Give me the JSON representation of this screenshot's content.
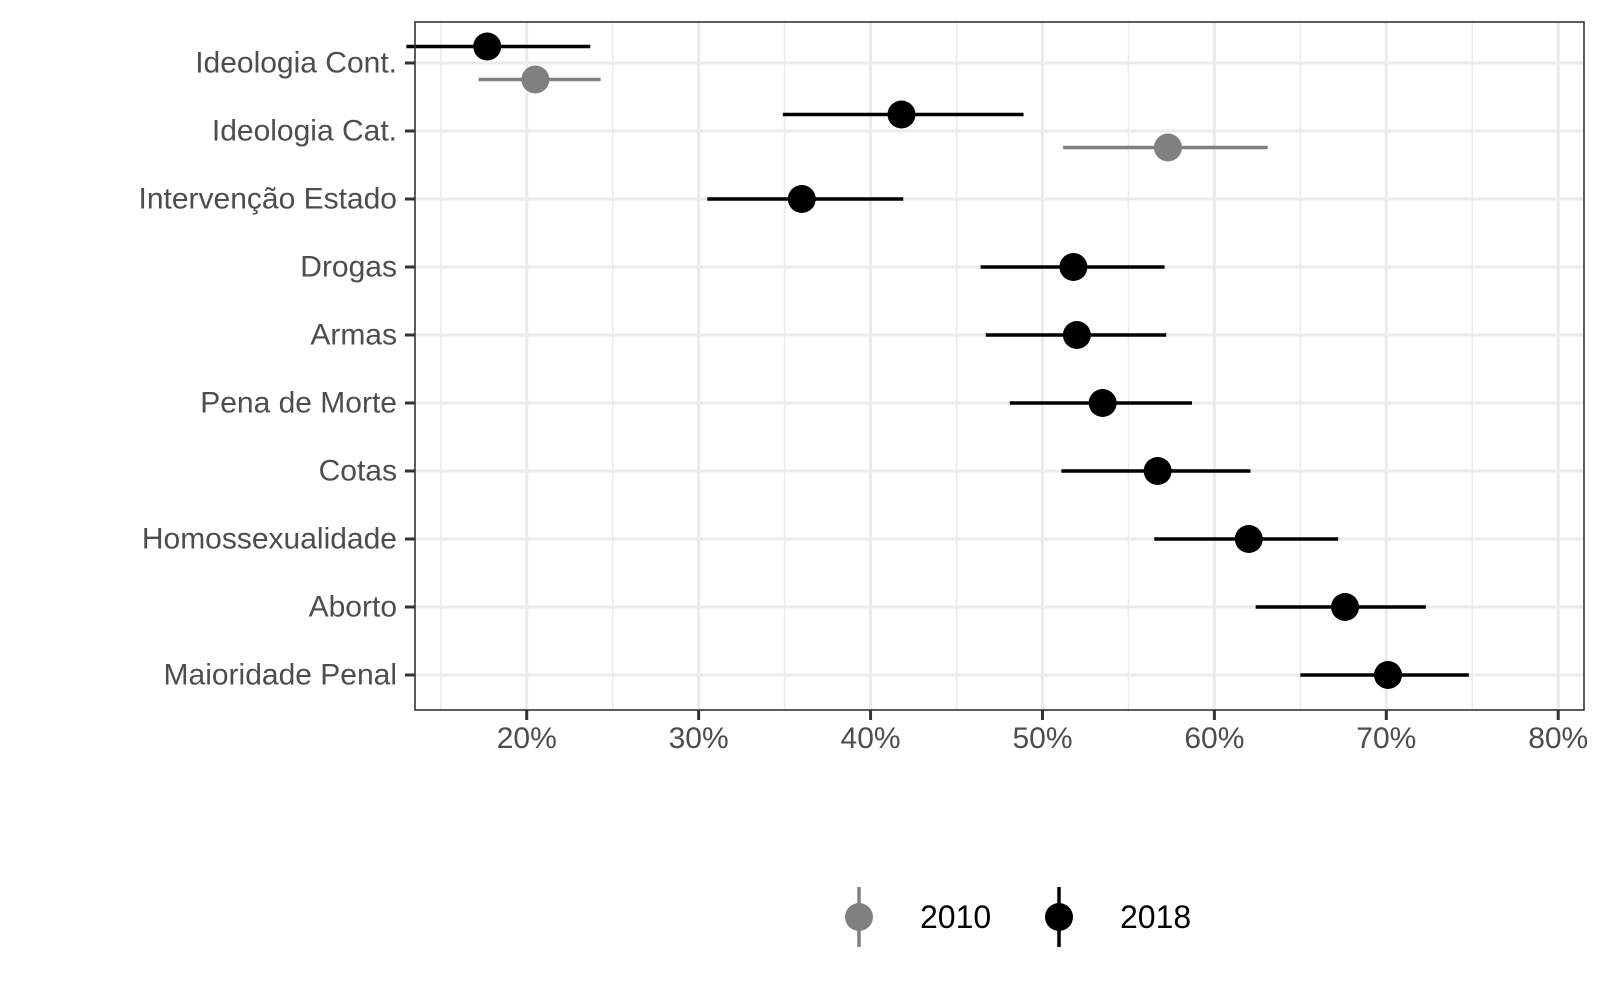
{
  "chart_data": {
    "type": "scatter",
    "subtype": "dot-and-whisker",
    "orientation": "horizontal",
    "title": "",
    "xlabel": "",
    "ylabel": "",
    "categories": [
      "Ideologia Cont.",
      "Ideologia Cat.",
      "Intervenção Estado",
      "Drogas",
      "Armas",
      "Pena de Morte",
      "Cotas",
      "Homossexualidade",
      "Aborto",
      "Maioridade Penal"
    ],
    "x_ticks": [
      20,
      30,
      40,
      50,
      60,
      70,
      80
    ],
    "x_tick_labels": [
      "20%",
      "30%",
      "40%",
      "50%",
      "60%",
      "70%",
      "80%"
    ],
    "xlim": [
      13.5,
      81.5
    ],
    "grid": true,
    "legend_position": "bottom",
    "series": [
      {
        "name": "2010",
        "color": "#808080",
        "points": [
          {
            "category": "Ideologia Cont.",
            "estimate": 20.5,
            "lower": 17.2,
            "upper": 24.3
          },
          {
            "category": "Ideologia Cat.",
            "estimate": 57.3,
            "lower": 51.2,
            "upper": 63.1
          }
        ]
      },
      {
        "name": "2018",
        "color": "#000000",
        "points": [
          {
            "category": "Ideologia Cont.",
            "estimate": 17.7,
            "lower": 13.0,
            "upper": 23.7
          },
          {
            "category": "Ideologia Cat.",
            "estimate": 41.8,
            "lower": 34.9,
            "upper": 48.9
          },
          {
            "category": "Intervenção Estado",
            "estimate": 36.0,
            "lower": 30.5,
            "upper": 41.9
          },
          {
            "category": "Drogas",
            "estimate": 51.8,
            "lower": 46.4,
            "upper": 57.1
          },
          {
            "category": "Armas",
            "estimate": 52.0,
            "lower": 46.7,
            "upper": 57.2
          },
          {
            "category": "Pena de Morte",
            "estimate": 53.5,
            "lower": 48.1,
            "upper": 58.7
          },
          {
            "category": "Cotas",
            "estimate": 56.7,
            "lower": 51.1,
            "upper": 62.1
          },
          {
            "category": "Homossexualidade",
            "estimate": 62.0,
            "lower": 56.5,
            "upper": 67.2
          },
          {
            "category": "Aborto",
            "estimate": 67.6,
            "lower": 62.4,
            "upper": 72.3
          },
          {
            "category": "Maioridade Penal",
            "estimate": 70.1,
            "lower": 65.0,
            "upper": 74.8
          }
        ]
      }
    ]
  }
}
